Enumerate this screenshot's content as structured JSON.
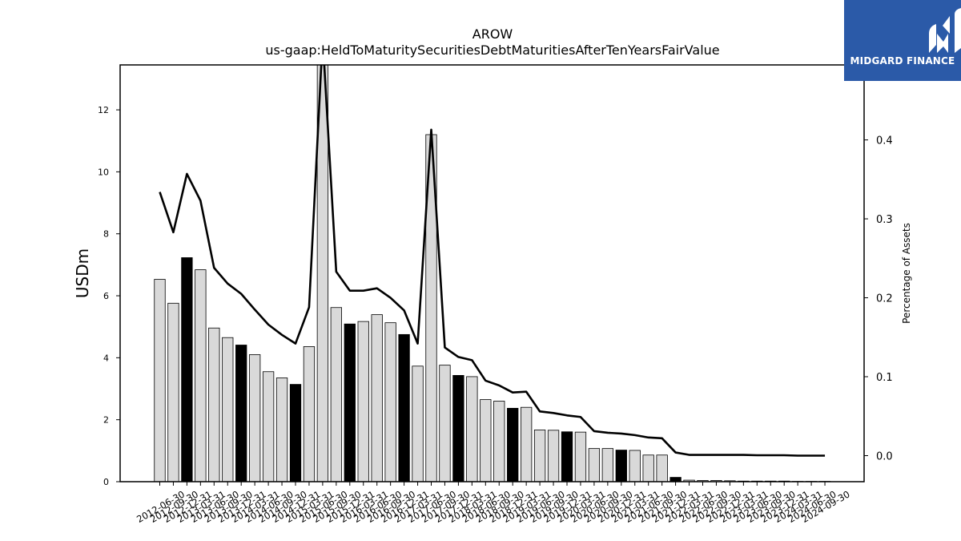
{
  "brand": {
    "name": "MIDGARD FINANCE",
    "color": "#2b5aa8"
  },
  "chart_data": {
    "type": "bar",
    "title": "AROW",
    "subtitle": "us-gaap:HeldToMaturitySecuritiesDebtMaturitiesAfterTenYearsFairValue",
    "ylabel": "USDm",
    "y2label": "Percentage of Assets",
    "ylim": [
      0,
      13.45
    ],
    "y2lim": [
      -0.033,
      0.495
    ],
    "yticks": [
      0,
      2,
      4,
      6,
      8,
      10,
      12
    ],
    "y2ticks": [
      "0.0",
      "0.1",
      "0.2",
      "0.3",
      "0.4"
    ],
    "categories": [
      "2012-06-30",
      "2012-09-30",
      "2012-12-31",
      "2013-03-31",
      "2013-06-30",
      "2013-09-30",
      "2013-12-31",
      "2014-03-31",
      "2014-06-30",
      "2014-09-30",
      "2014-12-31",
      "2015-03-31",
      "2015-06-30",
      "2015-09-30",
      "2015-12-31",
      "2016-03-31",
      "2016-06-30",
      "2016-09-30",
      "2016-12-31",
      "2017-03-31",
      "2017-06-30",
      "2017-09-30",
      "2017-12-31",
      "2018-03-31",
      "2018-06-30",
      "2018-09-30",
      "2018-12-31",
      "2019-03-31",
      "2019-06-30",
      "2019-09-30",
      "2019-12-31",
      "2020-03-31",
      "2020-06-30",
      "2020-09-30",
      "2020-12-31",
      "2021-03-31",
      "2021-06-30",
      "2021-09-30",
      "2021-12-31",
      "2022-03-31",
      "2022-06-30",
      "2022-09-30",
      "2022-12-31",
      "2023-03-31",
      "2023-06-30",
      "2023-09-30",
      "2023-12-31",
      "2024-03-31",
      "2024-06-30",
      "2024-09-30"
    ],
    "series": [
      {
        "kind": "bar",
        "axis": "left",
        "values": [
          6.53,
          5.76,
          7.23,
          6.84,
          4.96,
          4.65,
          4.41,
          4.1,
          3.55,
          3.35,
          3.14,
          4.36,
          13.6,
          5.62,
          5.09,
          5.17,
          5.39,
          5.13,
          4.75,
          3.73,
          11.2,
          3.76,
          3.43,
          3.39,
          2.65,
          2.6,
          2.37,
          2.4,
          1.67,
          1.66,
          1.61,
          1.6,
          1.07,
          1.07,
          1.02,
          1.01,
          0.86,
          0.86,
          0.14,
          0.05,
          0.04,
          0.04,
          0.03,
          0.02,
          0.02,
          0.02,
          0.02,
          0.01,
          0.01,
          0.01
        ],
        "highlight_indices": [
          2,
          6,
          10,
          14,
          18,
          22,
          26,
          30,
          34,
          38
        ],
        "colors": {
          "bar": "#d9d9d9",
          "highlight": "#000000"
        }
      },
      {
        "kind": "line",
        "axis": "right",
        "values": [
          0.334,
          0.283,
          0.357,
          0.323,
          0.238,
          0.218,
          0.205,
          0.185,
          0.166,
          0.153,
          0.142,
          0.188,
          0.53,
          0.233,
          0.209,
          0.209,
          0.212,
          0.2,
          0.184,
          0.142,
          0.413,
          0.137,
          0.125,
          0.121,
          0.095,
          0.089,
          0.08,
          0.081,
          0.056,
          0.054,
          0.051,
          0.049,
          0.031,
          0.029,
          0.028,
          0.026,
          0.023,
          0.022,
          0.004,
          0.001,
          0.001,
          0.001,
          0.001,
          0.001,
          0.0005,
          0.0005,
          0.0005,
          0.0,
          0.0,
          0.0
        ],
        "colors": {
          "line": "#000000"
        }
      }
    ]
  }
}
